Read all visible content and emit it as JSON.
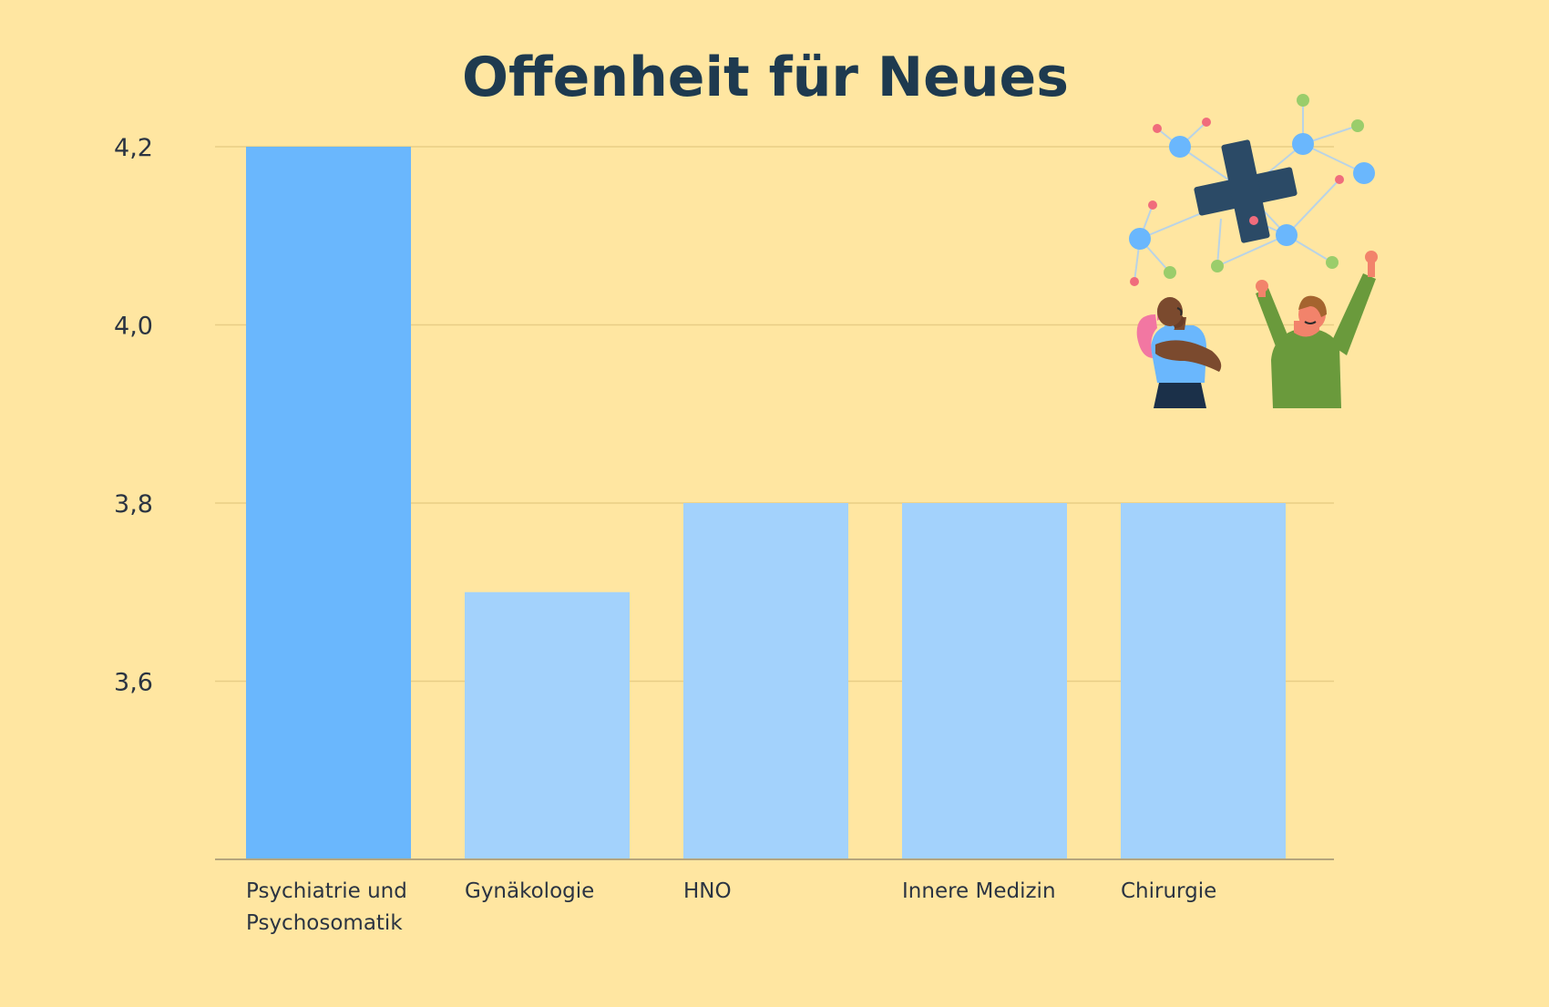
{
  "chart_data": {
    "type": "bar",
    "title": "Offenheit für Neues",
    "xlabel": "",
    "ylabel": "",
    "categories": [
      [
        "Psychiatrie und",
        "Psychosomatik"
      ],
      [
        "Gynäkologie"
      ],
      [
        "HNO"
      ],
      [
        "Innere Medizin"
      ],
      [
        "Chirurgie"
      ]
    ],
    "values": [
      4.2,
      3.7,
      3.8,
      3.8,
      3.8
    ],
    "highlight_index": 0,
    "ylim": [
      3.4,
      4.2
    ],
    "yticks": [
      3.6,
      3.8,
      4.0,
      4.2
    ],
    "ytick_labels": [
      "3,6",
      "3,8",
      "4,0",
      "4,2"
    ],
    "grid": true,
    "legend": "none",
    "colors": {
      "background": "#FFE6A1",
      "title": "#1E3A4F",
      "text": "#2B3442",
      "bar": "#A3D2FC",
      "bar_highlight": "#6AB7FD",
      "grid": "#E8CD86",
      "axis": "#B5A57C"
    }
  },
  "illustration": {
    "icon": "medical-cross-network-icon",
    "people": [
      "person-arms-crossed-icon",
      "person-cheering-icon"
    ]
  }
}
